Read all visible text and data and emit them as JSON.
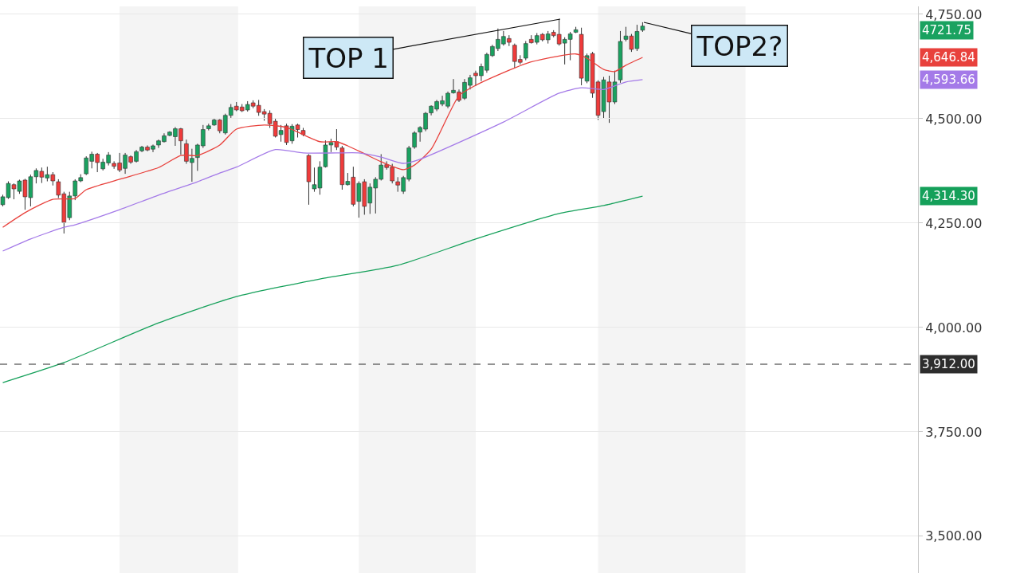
{
  "chart_data": {
    "type": "candlestick",
    "categories": [
      null,
      null,
      null,
      null,
      null,
      null,
      null,
      null,
      null,
      null,
      null,
      null,
      null,
      null,
      null,
      null,
      null,
      null,
      null,
      null,
      null,
      null,
      null,
      null,
      null,
      null,
      null,
      null,
      null,
      null,
      null,
      null,
      null,
      null,
      null,
      null,
      null,
      null,
      null,
      null,
      null,
      null,
      null,
      null,
      null,
      null,
      null,
      null,
      null,
      null,
      null,
      null,
      null,
      null,
      null,
      null,
      null,
      null,
      null,
      null,
      null,
      null,
      null,
      null,
      null,
      null,
      null,
      null,
      null,
      null,
      null,
      null,
      null,
      null,
      null,
      null,
      null,
      null,
      null,
      null,
      null,
      null,
      null,
      null,
      null,
      null,
      null,
      null,
      null,
      null,
      null,
      null,
      null,
      null,
      null,
      null,
      null,
      null,
      null,
      null,
      null,
      null,
      null,
      null,
      null,
      null,
      null,
      null,
      null,
      null,
      null,
      null,
      null,
      null,
      null,
      null,
      null,
      null,
      null,
      null,
      null,
      null,
      null,
      null,
      null,
      null,
      null,
      null,
      null,
      null,
      null,
      null,
      null,
      null,
      null,
      null,
      null,
      null,
      null,
      null,
      null,
      null,
      null,
      null,
      null,
      null,
      null,
      null,
      null,
      null,
      null,
      null,
      null,
      null,
      null,
      null,
      null,
      null,
      null,
      null,
      null,
      null,
      null,
      null,
      null
    ],
    "ohlc": [
      [
        4294,
        4318,
        4290,
        4313
      ],
      [
        4311,
        4350,
        4308,
        4345
      ],
      [
        4342,
        4345,
        4307,
        4332
      ],
      [
        4326,
        4354,
        4320,
        4351
      ],
      [
        4353,
        4356,
        4282,
        4313
      ],
      [
        4311,
        4366,
        4290,
        4361
      ],
      [
        4361,
        4381,
        4345,
        4376
      ],
      [
        4374,
        4383,
        4346,
        4360
      ],
      [
        4358,
        4385,
        4350,
        4366
      ],
      [
        4366,
        4372,
        4340,
        4351
      ],
      [
        4349,
        4355,
        4310,
        4317
      ],
      [
        4320,
        4325,
        4225,
        4252
      ],
      [
        4263,
        4325,
        4257,
        4315
      ],
      [
        4315,
        4355,
        4305,
        4351
      ],
      [
        4351,
        4367,
        4348,
        4359
      ],
      [
        4368,
        4410,
        4365,
        4406
      ],
      [
        4398,
        4421,
        4381,
        4415
      ],
      [
        4415,
        4418,
        4372,
        4395
      ],
      [
        4380,
        4404,
        4376,
        4396
      ],
      [
        4394,
        4420,
        4388,
        4413
      ],
      [
        4393,
        4398,
        4380,
        4386
      ],
      [
        4394,
        4418,
        4372,
        4377
      ],
      [
        4381,
        4418,
        4368,
        4413
      ],
      [
        4409,
        4412,
        4392,
        4396
      ],
      [
        4398,
        4425,
        4395,
        4421
      ],
      [
        4423,
        4435,
        4420,
        4432
      ],
      [
        4432,
        4436,
        4422,
        4425
      ],
      [
        4427,
        4438,
        4420,
        4435
      ],
      [
        4437,
        4450,
        4430,
        4447
      ],
      [
        4445,
        4465,
        4443,
        4459
      ],
      [
        4460,
        4470,
        4458,
        4468
      ],
      [
        4457,
        4480,
        4435,
        4476
      ],
      [
        4476,
        4478,
        4414,
        4447
      ],
      [
        4440,
        4450,
        4392,
        4398
      ],
      [
        4395,
        4428,
        4349,
        4405
      ],
      [
        4407,
        4440,
        4375,
        4437
      ],
      [
        4435,
        4485,
        4430,
        4474
      ],
      [
        4476,
        4488,
        4472,
        4483
      ],
      [
        4485,
        4500,
        4483,
        4497
      ],
      [
        4497,
        4499,
        4465,
        4471
      ],
      [
        4466,
        4512,
        4462,
        4508
      ],
      [
        4508,
        4535,
        4502,
        4527
      ],
      [
        4530,
        4540,
        4518,
        4521
      ],
      [
        4528,
        4535,
        4516,
        4519
      ],
      [
        4521,
        4542,
        4517,
        4534
      ],
      [
        4538,
        4544,
        4525,
        4530
      ],
      [
        4532,
        4545,
        4507,
        4515
      ],
      [
        4517,
        4523,
        4495,
        4511
      ],
      [
        4513,
        4520,
        4478,
        4488
      ],
      [
        4494,
        4500,
        4455,
        4458
      ],
      [
        4462,
        4485,
        4445,
        4472
      ],
      [
        4483,
        4488,
        4437,
        4443
      ],
      [
        4447,
        4487,
        4440,
        4482
      ],
      [
        4485,
        4488,
        4455,
        4474
      ],
      [
        4472,
        4478,
        4458,
        4462
      ],
      [
        4412,
        4415,
        4294,
        4349
      ],
      [
        4332,
        4383,
        4325,
        4342
      ],
      [
        4334,
        4398,
        4318,
        4384
      ],
      [
        4385,
        4448,
        4383,
        4437
      ],
      [
        4437,
        4452,
        4420,
        4443
      ],
      [
        4445,
        4475,
        4425,
        4432
      ],
      [
        4430,
        4435,
        4330,
        4342
      ],
      [
        4342,
        4370,
        4340,
        4350
      ],
      [
        4360,
        4385,
        4290,
        4295
      ],
      [
        4302,
        4350,
        4263,
        4345
      ],
      [
        4349,
        4355,
        4270,
        4290
      ],
      [
        4298,
        4345,
        4272,
        4336
      ],
      [
        4334,
        4360,
        4273,
        4355
      ],
      [
        4355,
        4415,
        4352,
        4389
      ],
      [
        4390,
        4398,
        4378,
        4383
      ],
      [
        4384,
        4392,
        4345,
        4351
      ],
      [
        4349,
        4360,
        4325,
        4341
      ],
      [
        4326,
        4363,
        4320,
        4359
      ],
      [
        4355,
        4435,
        4350,
        4430
      ],
      [
        4432,
        4470,
        4428,
        4466
      ],
      [
        4468,
        4482,
        4445,
        4479
      ],
      [
        4475,
        4516,
        4470,
        4513
      ],
      [
        4514,
        4532,
        4508,
        4530
      ],
      [
        4523,
        4545,
        4518,
        4541
      ],
      [
        4535,
        4555,
        4530,
        4543
      ],
      [
        4530,
        4565,
        4525,
        4561
      ],
      [
        4562,
        4595,
        4560,
        4568
      ],
      [
        4564,
        4570,
        4540,
        4544
      ],
      [
        4549,
        4595,
        4545,
        4587
      ],
      [
        4580,
        4605,
        4570,
        4598
      ],
      [
        4609,
        4615,
        4578,
        4603
      ],
      [
        4603,
        4632,
        4590,
        4625
      ],
      [
        4616,
        4658,
        4610,
        4654
      ],
      [
        4651,
        4677,
        4648,
        4673
      ],
      [
        4668,
        4716,
        4662,
        4690
      ],
      [
        4679,
        4710,
        4675,
        4697
      ],
      [
        4692,
        4700,
        4674,
        4683
      ],
      [
        4676,
        4680,
        4622,
        4637
      ],
      [
        4642,
        4652,
        4630,
        4635
      ],
      [
        4645,
        4686,
        4640,
        4680
      ],
      [
        4690,
        4700,
        4680,
        4682
      ],
      [
        4683,
        4705,
        4678,
        4699
      ],
      [
        4702,
        4705,
        4685,
        4689
      ],
      [
        4689,
        4710,
        4680,
        4703
      ],
      [
        4707,
        4712,
        4695,
        4699
      ],
      [
        4702,
        4739,
        4675,
        4679
      ],
      [
        4681,
        4695,
        4630,
        4690
      ],
      [
        4690,
        4708,
        4640,
        4703
      ],
      [
        4707,
        4720,
        4705,
        4713
      ],
      [
        4702,
        4718,
        4580,
        4597
      ],
      [
        4590,
        4656,
        4585,
        4651
      ],
      [
        4656,
        4660,
        4550,
        4561
      ],
      [
        4588,
        4592,
        4497,
        4508
      ],
      [
        4517,
        4600,
        4500,
        4593
      ],
      [
        4588,
        4603,
        4490,
        4540
      ],
      [
        4540,
        4615,
        4535,
        4588
      ],
      [
        4593,
        4710,
        4586,
        4685
      ],
      [
        4690,
        4720,
        4685,
        4698
      ],
      [
        4698,
        4703,
        4660,
        4666
      ],
      [
        4668,
        4725,
        4662,
        4709
      ],
      [
        4712,
        4731,
        4708,
        4721.75
      ],
      null,
      null,
      null,
      null,
      null,
      null,
      null,
      null,
      null,
      null,
      null,
      null,
      null,
      null,
      null,
      null,
      null,
      null,
      null,
      null,
      null,
      null,
      null,
      null,
      null,
      null,
      null,
      null,
      null,
      null,
      null,
      null,
      null,
      null,
      null,
      null,
      null,
      null,
      null,
      null,
      null,
      null,
      null,
      null,
      null,
      null,
      null,
      null,
      null
    ],
    "series": [
      {
        "type": "line",
        "color": "#e8413c",
        "values": [
          4240,
          null,
          null,
          null,
          4275,
          null,
          null,
          null,
          null,
          4307,
          null,
          null,
          null,
          4309,
          null,
          4330,
          null,
          null,
          null,
          null,
          null,
          4355,
          null,
          null,
          null,
          null,
          null,
          null,
          4383,
          null,
          null,
          null,
          4412,
          null,
          null,
          4412,
          null,
          null,
          null,
          4437,
          null,
          null,
          4475,
          null,
          null,
          null,
          null,
          4485,
          null,
          null,
          null,
          4479,
          null,
          null,
          null,
          null,
          null,
          4445,
          null,
          null,
          4445,
          null,
          4435,
          null,
          null,
          4416,
          null,
          null,
          4397,
          null,
          null,
          null,
          4378,
          null,
          4389,
          null,
          null,
          4427,
          null,
          null,
          null,
          null,
          4555,
          null,
          null,
          4580,
          null,
          null,
          null,
          null,
          null,
          4616,
          null,
          null,
          4632,
          null,
          null,
          null,
          4645,
          null,
          null,
          null,
          null,
          4655,
          null,
          4645,
          null,
          null,
          4618,
          null,
          4613,
          null,
          4628,
          null,
          null,
          4646.84,
          null,
          null,
          null,
          null,
          null,
          null,
          null,
          null,
          null,
          null,
          null,
          null,
          null,
          null,
          null,
          null,
          null,
          null,
          null,
          null,
          null,
          null,
          null,
          null,
          null,
          null,
          null,
          null,
          null,
          null,
          null,
          null,
          null,
          null,
          null,
          null,
          null,
          null,
          null,
          null,
          null,
          null,
          null,
          null,
          null,
          null,
          null,
          null,
          null
        ]
      },
      {
        "type": "line",
        "color": "#a47ae8",
        "values": [
          4183,
          null,
          null,
          null,
          null,
          4212,
          null,
          null,
          null,
          null,
          null,
          4240,
          null,
          4246,
          null,
          null,
          null,
          null,
          null,
          null,
          null,
          4282,
          null,
          null,
          null,
          null,
          null,
          null,
          4317,
          null,
          null,
          null,
          null,
          null,
          null,
          4349,
          null,
          null,
          null,
          4370,
          null,
          null,
          4384,
          null,
          null,
          null,
          null,
          null,
          null,
          4426,
          null,
          null,
          null,
          null,
          4418,
          null,
          null,
          null,
          null,
          null,
          4418,
          null,
          null,
          null,
          4418,
          null,
          null,
          null,
          4408,
          null,
          null,
          null,
          4393,
          null,
          null,
          4403,
          null,
          null,
          null,
          null,
          null,
          null,
          null,
          null,
          null,
          null,
          null,
          null,
          null,
          null,
          4492,
          null,
          null,
          null,
          null,
          null,
          null,
          null,
          null,
          null,
          4561,
          null,
          null,
          null,
          4574,
          null,
          null,
          null,
          4570,
          null,
          null,
          null,
          4588,
          null,
          null,
          4593.66,
          null,
          null,
          null,
          null,
          null,
          null,
          null,
          null,
          null,
          null,
          null,
          null,
          null,
          null,
          null,
          null,
          null,
          null,
          null,
          null,
          null,
          null,
          null,
          null,
          null,
          null,
          null,
          null,
          null,
          null,
          null,
          null,
          null,
          null,
          null,
          null,
          null,
          null,
          null,
          null,
          null,
          null,
          null,
          null,
          null,
          null,
          null,
          null,
          null
        ]
      },
      {
        "type": "line",
        "color": "#15a05a",
        "values": [
          3868,
          null,
          null,
          null,
          null,
          null,
          null,
          null,
          null,
          null,
          null,
          3916,
          null,
          null,
          null,
          null,
          null,
          null,
          null,
          null,
          null,
          null,
          null,
          null,
          null,
          null,
          null,
          null,
          4011,
          null,
          null,
          null,
          null,
          null,
          null,
          null,
          null,
          null,
          null,
          null,
          null,
          null,
          4074,
          null,
          null,
          null,
          null,
          null,
          null,
          null,
          null,
          null,
          null,
          null,
          null,
          null,
          null,
          4116,
          null,
          null,
          null,
          null,
          null,
          null,
          null,
          null,
          null,
          null,
          null,
          null,
          null,
          4149,
          null,
          null,
          null,
          null,
          null,
          null,
          null,
          null,
          null,
          null,
          null,
          null,
          null,
          4212,
          null,
          null,
          null,
          null,
          null,
          null,
          null,
          null,
          null,
          null,
          null,
          null,
          null,
          null,
          4273,
          null,
          null,
          null,
          null,
          null,
          null,
          null,
          4292,
          null,
          null,
          null,
          null,
          null,
          null,
          4314.3,
          null,
          null,
          null,
          null,
          null,
          null,
          null,
          null,
          null,
          null,
          null,
          null,
          null,
          null,
          null,
          null,
          null,
          null,
          null,
          null,
          null,
          null,
          null,
          null,
          null,
          null,
          null,
          null,
          null,
          null,
          null,
          null,
          null,
          null,
          null,
          null,
          null,
          null,
          null,
          null,
          null,
          null,
          null,
          null,
          null,
          null,
          null,
          null,
          null
        ]
      }
    ],
    "ylim": [
      3412,
      4769
    ],
    "yticks": [
      {
        "value": 3500,
        "label": "3,500.00"
      },
      {
        "value": 3750,
        "label": "3,750.00"
      },
      {
        "value": 4000,
        "label": "4,000.00"
      },
      {
        "value": 4250,
        "label": "4,250.00"
      },
      {
        "value": 4500,
        "label": "4,500.00"
      },
      {
        "value": 4750,
        "label": "4,750.00"
      }
    ],
    "ref_lines": [
      {
        "axis": "y",
        "value": 3912,
        "label": "3,912.00",
        "color": "#2d2d2d",
        "line_style": "dashed"
      }
    ],
    "annotations": [
      "TOP 1",
      "TOP2?",
      "4721.75",
      "4,646.84",
      "4,593.66",
      "4,314.30"
    ],
    "grid": "y",
    "tick_labels": "y"
  }
}
